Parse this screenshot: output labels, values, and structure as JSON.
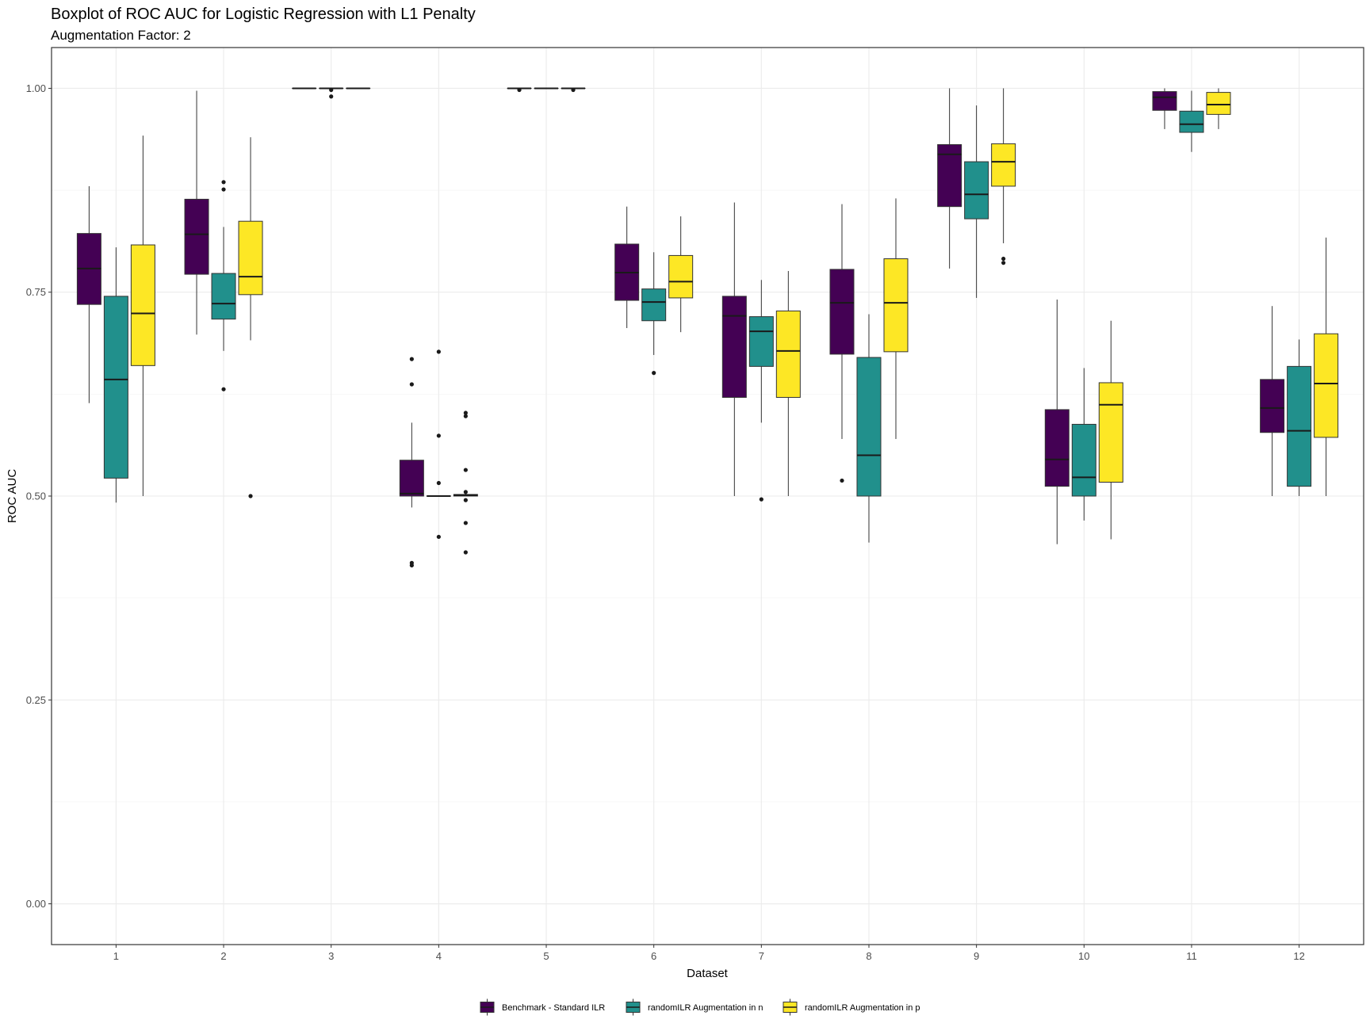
{
  "chart_data": {
    "type": "boxplot",
    "title": "Boxplot of ROC AUC for Logistic Regression with L1 Penalty",
    "subtitle": "Augmentation Factor: 2",
    "xlabel": "Dataset",
    "ylabel": "ROC AUC",
    "ylim": [
      -0.05,
      1.05
    ],
    "yticks": [
      "0.00",
      "0.25",
      "0.50",
      "0.75",
      "1.00"
    ],
    "grid": true,
    "legend_position": "bottom",
    "categories": [
      "1",
      "2",
      "3",
      "4",
      "5",
      "6",
      "7",
      "8",
      "9",
      "10",
      "11",
      "12"
    ],
    "series": [
      {
        "name": "Benchmark - Standard ILR",
        "color": "#440154",
        "boxes": [
          {
            "min": 0.614,
            "q1": 0.735,
            "median": 0.779,
            "q3": 0.822,
            "max": 0.88,
            "outliers": []
          },
          {
            "min": 0.698,
            "q1": 0.772,
            "median": 0.821,
            "q3": 0.864,
            "max": 0.997,
            "outliers": []
          },
          {
            "min": 1.0,
            "q1": 1.0,
            "median": 1.0,
            "q3": 1.0,
            "max": 1.0,
            "outliers": []
          },
          {
            "min": 0.486,
            "q1": 0.5,
            "median": 0.503,
            "q3": 0.544,
            "max": 0.59,
            "outliers": [
              0.668,
              0.637,
              0.418,
              0.415
            ]
          },
          {
            "min": 1.0,
            "q1": 1.0,
            "median": 1.0,
            "q3": 1.0,
            "max": 1.0,
            "outliers": [
              0.998
            ]
          },
          {
            "min": 0.706,
            "q1": 0.74,
            "median": 0.774,
            "q3": 0.809,
            "max": 0.855,
            "outliers": []
          },
          {
            "min": 0.5,
            "q1": 0.621,
            "median": 0.721,
            "q3": 0.745,
            "max": 0.86,
            "outliers": []
          },
          {
            "min": 0.57,
            "q1": 0.674,
            "median": 0.737,
            "q3": 0.778,
            "max": 0.858,
            "outliers": [
              0.519
            ]
          },
          {
            "min": 0.779,
            "q1": 0.855,
            "median": 0.919,
            "q3": 0.931,
            "max": 1.0,
            "outliers": []
          },
          {
            "min": 0.441,
            "q1": 0.512,
            "median": 0.545,
            "q3": 0.606,
            "max": 0.741,
            "outliers": []
          },
          {
            "min": 0.95,
            "q1": 0.973,
            "median": 0.989,
            "q3": 0.996,
            "max": 1.0,
            "outliers": []
          },
          {
            "min": 0.5,
            "q1": 0.578,
            "median": 0.608,
            "q3": 0.643,
            "max": 0.733,
            "outliers": []
          }
        ]
      },
      {
        "name": "randomILR Augmentation in n",
        "color": "#21908c",
        "boxes": [
          {
            "min": 0.492,
            "q1": 0.522,
            "median": 0.643,
            "q3": 0.745,
            "max": 0.805,
            "outliers": []
          },
          {
            "min": 0.678,
            "q1": 0.717,
            "median": 0.736,
            "q3": 0.773,
            "max": 0.83,
            "outliers": [
              0.885,
              0.876,
              0.631
            ]
          },
          {
            "min": 1.0,
            "q1": 1.0,
            "median": 1.0,
            "q3": 1.0,
            "max": 1.0,
            "outliers": [
              0.998,
              0.99
            ]
          },
          {
            "min": 0.5,
            "q1": 0.5,
            "median": 0.5,
            "q3": 0.5,
            "max": 0.5,
            "outliers": [
              0.677,
              0.574,
              0.516,
              0.45
            ]
          },
          {
            "min": 1.0,
            "q1": 1.0,
            "median": 1.0,
            "q3": 1.0,
            "max": 1.0,
            "outliers": []
          },
          {
            "min": 0.673,
            "q1": 0.715,
            "median": 0.738,
            "q3": 0.754,
            "max": 0.799,
            "outliers": [
              0.651
            ]
          },
          {
            "min": 0.59,
            "q1": 0.659,
            "median": 0.702,
            "q3": 0.72,
            "max": 0.765,
            "outliers": [
              0.496
            ]
          },
          {
            "min": 0.443,
            "q1": 0.5,
            "median": 0.55,
            "q3": 0.67,
            "max": 0.723,
            "outliers": []
          },
          {
            "min": 0.743,
            "q1": 0.84,
            "median": 0.87,
            "q3": 0.91,
            "max": 0.979,
            "outliers": []
          },
          {
            "min": 0.47,
            "q1": 0.5,
            "median": 0.523,
            "q3": 0.588,
            "max": 0.657,
            "outliers": []
          },
          {
            "min": 0.922,
            "q1": 0.946,
            "median": 0.956,
            "q3": 0.972,
            "max": 0.997,
            "outliers": []
          },
          {
            "min": 0.5,
            "q1": 0.512,
            "median": 0.58,
            "q3": 0.659,
            "max": 0.692,
            "outliers": []
          }
        ]
      },
      {
        "name": "randomILR Augmentation in p",
        "color": "#fde725",
        "boxes": [
          {
            "min": 0.5,
            "q1": 0.66,
            "median": 0.724,
            "q3": 0.808,
            "max": 0.942,
            "outliers": []
          },
          {
            "min": 0.691,
            "q1": 0.747,
            "median": 0.769,
            "q3": 0.837,
            "max": 0.94,
            "outliers": [
              0.5
            ]
          },
          {
            "min": 1.0,
            "q1": 1.0,
            "median": 1.0,
            "q3": 1.0,
            "max": 1.0,
            "outliers": []
          },
          {
            "min": 0.5,
            "q1": 0.5,
            "median": 0.501,
            "q3": 0.502,
            "max": 0.503,
            "outliers": [
              0.602,
              0.598,
              0.532,
              0.505,
              0.495,
              0.467,
              0.431
            ]
          },
          {
            "min": 1.0,
            "q1": 1.0,
            "median": 1.0,
            "q3": 1.0,
            "max": 1.0,
            "outliers": [
              0.998
            ]
          },
          {
            "min": 0.701,
            "q1": 0.743,
            "median": 0.763,
            "q3": 0.795,
            "max": 0.843,
            "outliers": []
          },
          {
            "min": 0.5,
            "q1": 0.621,
            "median": 0.678,
            "q3": 0.727,
            "max": 0.776,
            "outliers": []
          },
          {
            "min": 0.57,
            "q1": 0.677,
            "median": 0.737,
            "q3": 0.791,
            "max": 0.865,
            "outliers": []
          },
          {
            "min": 0.81,
            "q1": 0.88,
            "median": 0.91,
            "q3": 0.932,
            "max": 1.0,
            "outliers": [
              0.791,
              0.786
            ]
          },
          {
            "min": 0.447,
            "q1": 0.517,
            "median": 0.612,
            "q3": 0.639,
            "max": 0.715,
            "outliers": []
          },
          {
            "min": 0.95,
            "q1": 0.968,
            "median": 0.98,
            "q3": 0.995,
            "max": 1.0,
            "outliers": []
          },
          {
            "min": 0.5,
            "q1": 0.572,
            "median": 0.638,
            "q3": 0.699,
            "max": 0.817,
            "outliers": []
          }
        ]
      }
    ]
  }
}
